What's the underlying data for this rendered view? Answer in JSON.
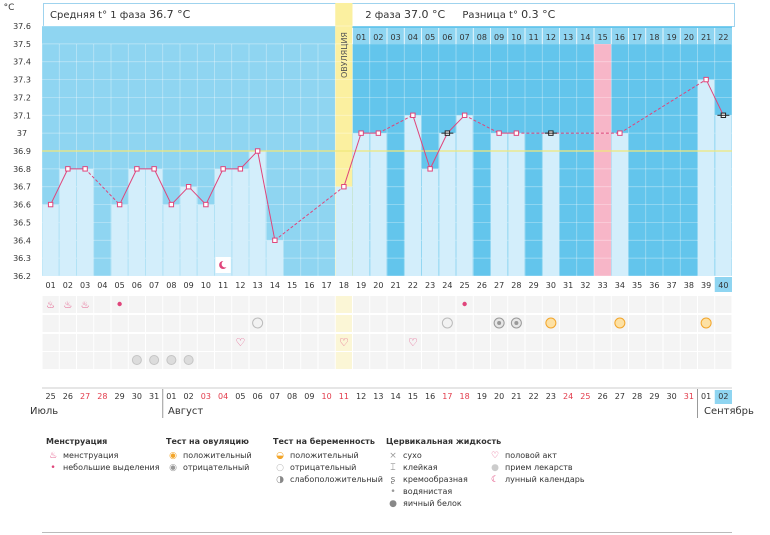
{
  "header": {
    "phase1_label": "Средняя t° 1 фаза",
    "phase1_value": "36.7 °C",
    "phase2_label": "2 фаза",
    "phase2_value": "37.0 °C",
    "diff_label": "Разница t°",
    "diff_value": "0.3 °C"
  },
  "chart_data": {
    "type": "line",
    "ylabel": "°C",
    "ylim": [
      36.2,
      37.6
    ],
    "yticks": [
      "36.2",
      "36.3",
      "36.4",
      "36.5",
      "36.6",
      "36.7",
      "36.8",
      "36.9",
      "37",
      "37.1",
      "37.2",
      "37.3",
      "37.4",
      "37.5",
      "37.6"
    ],
    "coverline": 36.9,
    "ovulation_label": "ОВУЛЯЦИЯ",
    "ovulation_day": 18,
    "cycle_days": [
      "01",
      "02",
      "03",
      "04",
      "05",
      "06",
      "07",
      "08",
      "09",
      "10",
      "11",
      "12",
      "13",
      "14",
      "15",
      "16",
      "17",
      "18",
      "19",
      "20",
      "21",
      "22",
      "23",
      "24",
      "25",
      "26",
      "27",
      "28",
      "29",
      "30",
      "31",
      "32",
      "33",
      "34",
      "35",
      "36",
      "37",
      "38",
      "39",
      "40"
    ],
    "phase2_days": [
      "01",
      "02",
      "03",
      "04",
      "05",
      "06",
      "07",
      "08",
      "09",
      "10",
      "11",
      "12",
      "13",
      "14",
      "15",
      "16",
      "17",
      "18",
      "19",
      "20",
      "21",
      "22"
    ],
    "pink_phase2_day": 15,
    "highlight_day": 40,
    "dates": [
      "25",
      "26",
      "27",
      "28",
      "29",
      "30",
      "31",
      "01",
      "02",
      "03",
      "04",
      "05",
      "06",
      "07",
      "08",
      "09",
      "10",
      "11",
      "12",
      "13",
      "14",
      "15",
      "16",
      "17",
      "18",
      "19",
      "20",
      "21",
      "22",
      "23",
      "24",
      "25",
      "26",
      "27",
      "28",
      "29",
      "30",
      "31",
      "01",
      "02"
    ],
    "red_date_index": [
      2,
      3,
      9,
      10,
      16,
      17,
      23,
      24,
      30,
      31,
      37
    ],
    "temps": [
      36.6,
      36.8,
      36.8,
      null,
      36.6,
      36.8,
      36.8,
      36.6,
      36.7,
      36.6,
      36.8,
      36.8,
      36.9,
      36.4,
      null,
      null,
      null,
      36.7,
      37.0,
      37.0,
      null,
      37.1,
      36.8,
      37.0,
      37.1,
      null,
      37.0,
      37.0,
      null,
      37.0,
      null,
      null,
      null,
      37.0,
      null,
      null,
      null,
      null,
      37.3,
      37.1
    ],
    "black_marker_days": [
      24,
      30,
      40
    ],
    "months": [
      "Июль",
      "Август",
      "Сентябрь"
    ]
  },
  "rows": {
    "menstruation_heavy": [
      1,
      2,
      3
    ],
    "menstruation_light": [
      5,
      25
    ],
    "ovulation_negative_pregnancy": [
      13,
      24
    ],
    "weak_positive": [
      27,
      28
    ],
    "ovulation_positive": [
      30,
      34,
      39
    ],
    "heart": [
      12,
      18,
      22
    ],
    "pills": [
      6,
      7,
      8,
      9
    ],
    "moon": [
      11
    ]
  },
  "legend": {
    "menstruation": {
      "title": "Менструация",
      "items": [
        "менструация",
        "небольшие выделения"
      ]
    },
    "ovulation_test": {
      "title": "Тест на овуляцию",
      "items": [
        "положительный",
        "отрицательный"
      ]
    },
    "pregnancy_test": {
      "title": "Тест на беременность",
      "items": [
        "положительный",
        "отрицательный",
        "слабоположительный"
      ]
    },
    "cervical": {
      "title": "Цервикальная жидкость",
      "items": [
        "сухо",
        "клейкая",
        "кремообразная",
        "водянистая",
        "яичный белок"
      ]
    },
    "other": {
      "items": [
        "половой акт",
        "прием лекарств",
        "лунный календарь"
      ]
    }
  },
  "colors": {
    "accent": "#e0457b",
    "bar": "#d3eefb",
    "bg_phase1": "#8fd5f1",
    "bg_phase2": "#63c5ec",
    "ovulation": "#fbf0a0",
    "pink_day": "#f7b6c8",
    "coverline": "#f0e87a"
  }
}
